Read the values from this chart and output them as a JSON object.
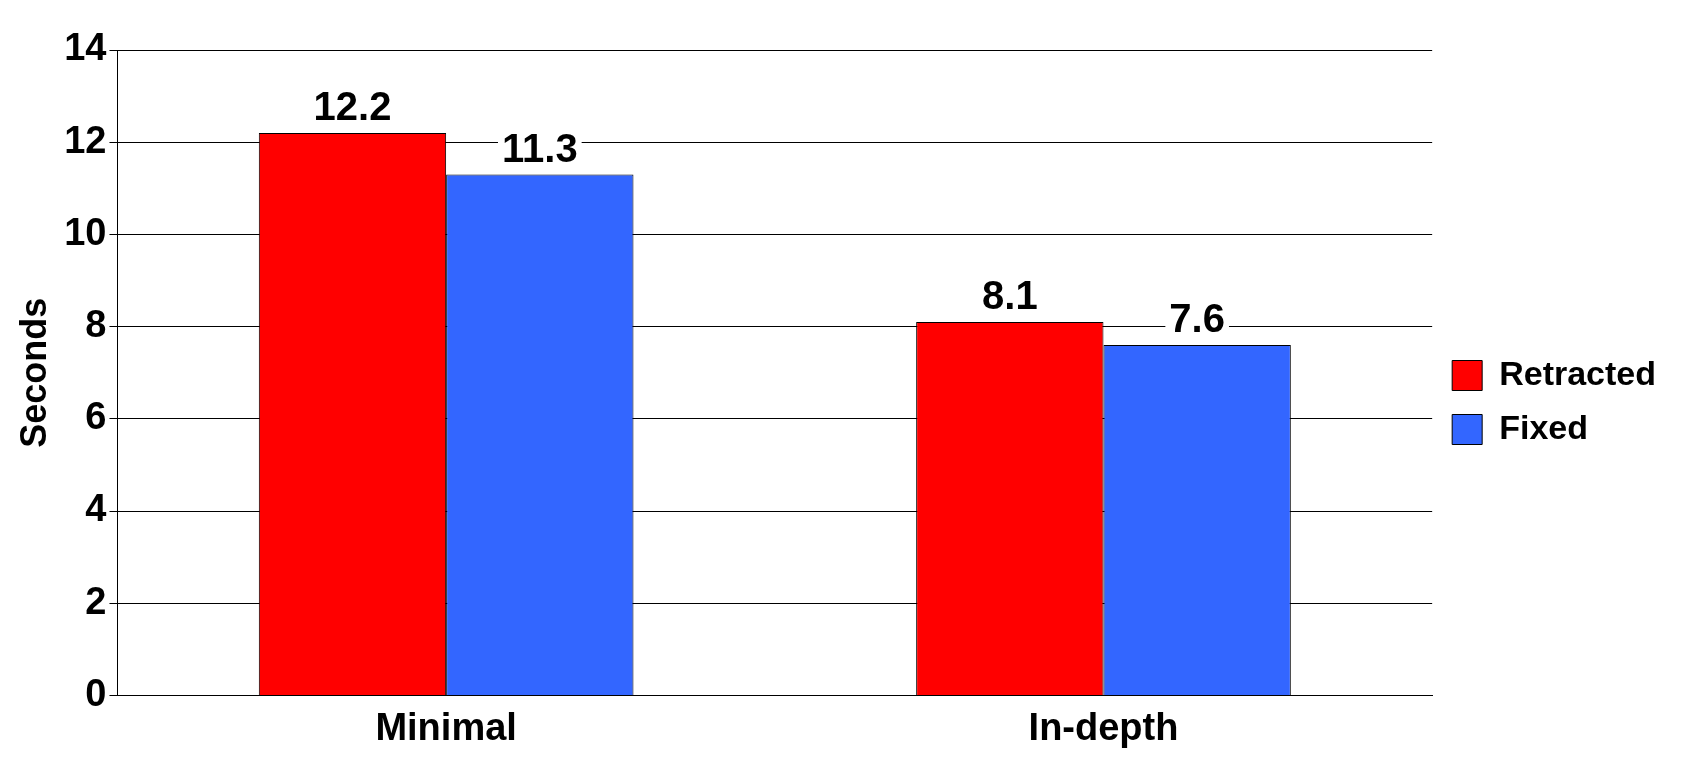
{
  "chart_data": {
    "type": "bar",
    "ylabel": "Seconds",
    "categories": [
      "Minimal",
      "In-depth"
    ],
    "series": [
      {
        "name": "Retracted",
        "color": "#ff0000",
        "values": [
          12.2,
          8.1
        ]
      },
      {
        "name": "Fixed",
        "color": "#3366ff",
        "values": [
          11.3,
          7.6
        ]
      }
    ],
    "ylim": [
      0,
      14
    ],
    "yticks": [
      0,
      2,
      4,
      6,
      8,
      10,
      12,
      14
    ],
    "grid": "y",
    "legend": "right",
    "data_labels": true
  }
}
